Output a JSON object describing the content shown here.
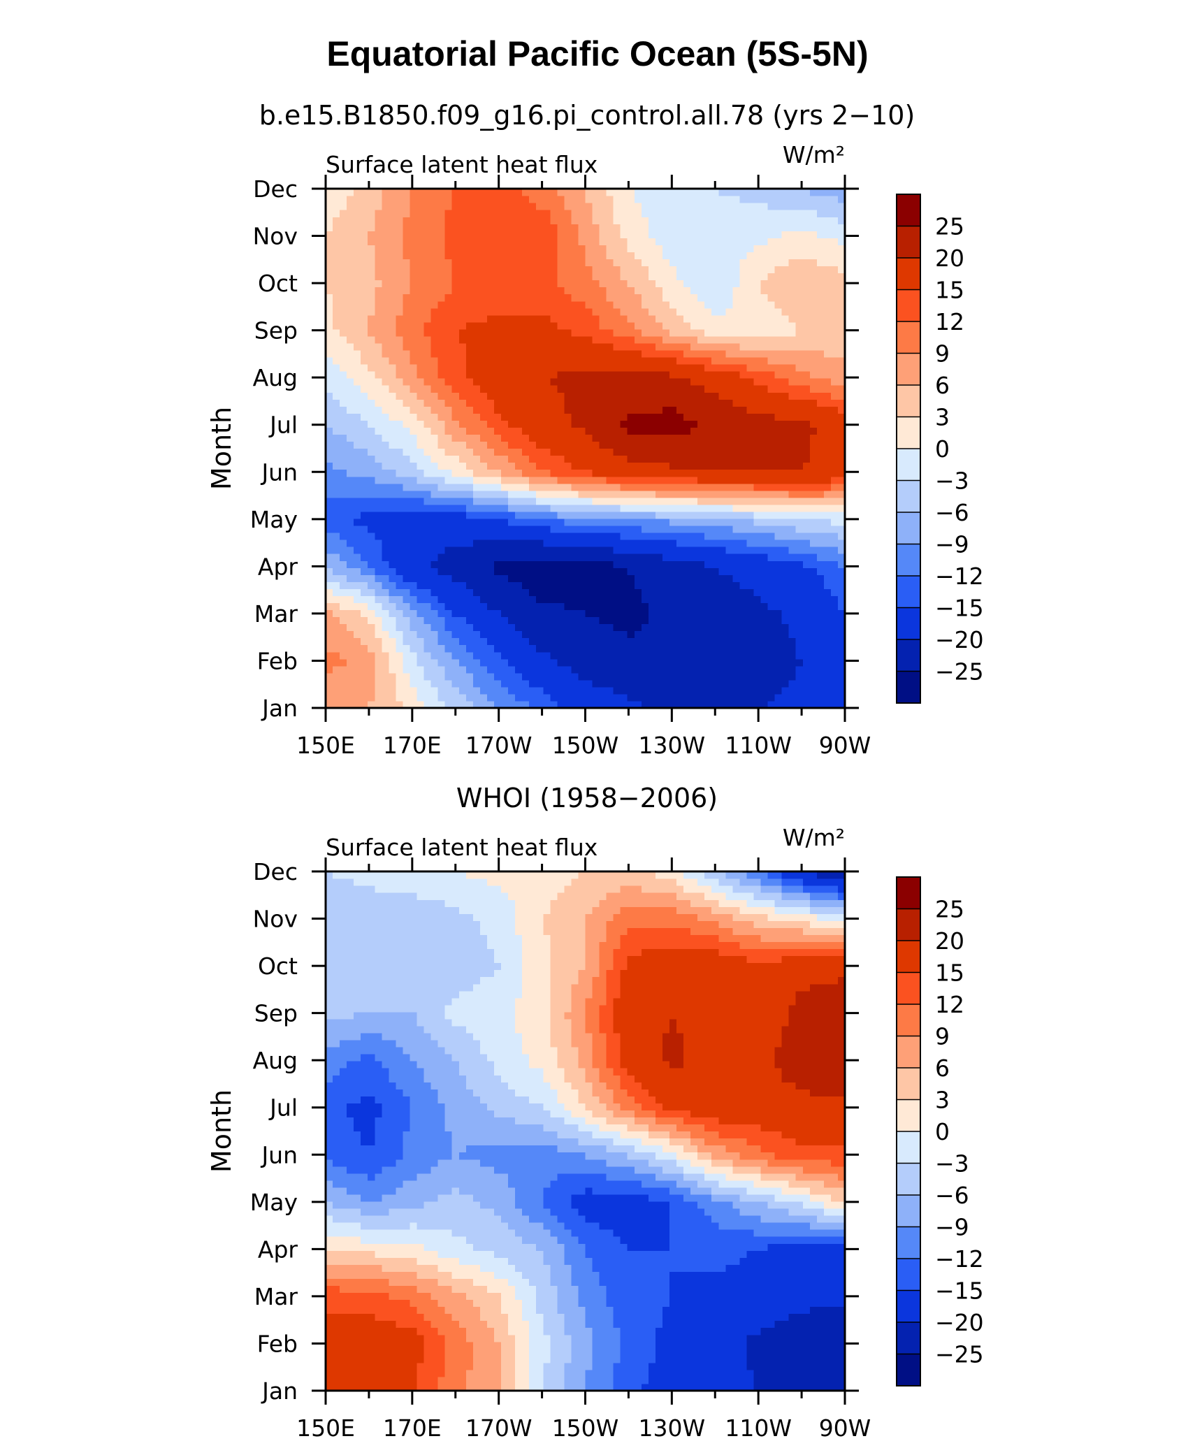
{
  "title": "Equatorial Pacific Ocean (5S-5N)",
  "colorbar": {
    "labels": [
      "25",
      "20",
      "15",
      "12",
      "9",
      "6",
      "3",
      "0",
      "−3",
      "−6",
      "−9",
      "−12",
      "−15",
      "−20",
      "−25"
    ],
    "colors": [
      "#8b0000",
      "#b82000",
      "#de3800",
      "#fb5220",
      "#fd7a46",
      "#fea077",
      "#fec6a6",
      "#ffe9d6",
      "#d8eafd",
      "#b4cdfb",
      "#8eb1f9",
      "#5588f8",
      "#2a5ef5",
      "#0b36dd",
      "#0422b0",
      "#000f85"
    ]
  },
  "chart_data": [
    {
      "type": "heatmap",
      "title": "b.e15.B1850.f09_g16.pi_control.all.78 (yrs 2−10)",
      "left_label": "Surface latent heat flux",
      "units_label": "W/m²",
      "ylabel": "Month",
      "xlabel": "",
      "x_ticks": [
        "150E",
        "170E",
        "170W",
        "150W",
        "130W",
        "110W",
        "90W"
      ],
      "x_range": [
        150,
        270
      ],
      "y_ticks": [
        "Jan",
        "Feb",
        "Mar",
        "Apr",
        "May",
        "Jun",
        "Jul",
        "Aug",
        "Sep",
        "Oct",
        "Nov",
        "Dec"
      ],
      "levels": [
        -25,
        -20,
        -15,
        -12,
        -9,
        -6,
        -3,
        0,
        3,
        6,
        9,
        12,
        15,
        20,
        25
      ],
      "values": [
        [
          6,
          6,
          2,
          -4,
          -9,
          -13,
          -17,
          -19,
          -21,
          -22,
          -20,
          -19,
          -17
        ],
        [
          10,
          8,
          -2,
          -9,
          -14,
          -19,
          -22,
          -24,
          -25,
          -25,
          -22,
          -20,
          -17
        ],
        [
          7,
          2,
          -8,
          -15,
          -20,
          -24,
          -25,
          -26,
          -24,
          -23,
          -21,
          -19,
          -15
        ],
        [
          -6,
          -12,
          -19,
          -22,
          -26,
          -28,
          -27,
          -25,
          -22,
          -20,
          -18,
          -16,
          -12
        ],
        [
          -14,
          -16,
          -18,
          -17,
          -15,
          -12,
          -10,
          -9,
          -8,
          -7,
          -5,
          -3,
          -2
        ],
        [
          -10,
          -8,
          -4,
          1,
          6,
          12,
          15,
          18,
          19,
          20,
          20,
          20,
          18
        ],
        [
          -6,
          -3,
          1,
          8,
          14,
          18,
          21,
          26,
          27,
          24,
          22,
          21,
          18
        ],
        [
          -2,
          2,
          8,
          14,
          18,
          20,
          21,
          22,
          21,
          18,
          14,
          10,
          7
        ],
        [
          2,
          6,
          11,
          15,
          16,
          16,
          14,
          10,
          5,
          1,
          1,
          3,
          4
        ],
        [
          3,
          5,
          9,
          12,
          13,
          13,
          10,
          6,
          1,
          -3,
          3,
          6,
          4
        ],
        [
          3,
          6,
          10,
          13,
          15,
          15,
          8,
          2,
          -2,
          -1,
          -1,
          1,
          -1
        ],
        [
          1,
          4,
          9,
          12,
          14,
          10,
          6,
          0,
          -2,
          -3,
          -4,
          -6,
          -8
        ]
      ]
    },
    {
      "type": "heatmap",
      "title": "WHOI (1958−2006)",
      "left_label": "Surface latent heat flux",
      "units_label": "W/m²",
      "ylabel": "Month",
      "xlabel": "",
      "x_ticks": [
        "150E",
        "170E",
        "170W",
        "150W",
        "130W",
        "110W",
        "90W"
      ],
      "x_range": [
        150,
        270
      ],
      "y_ticks": [
        "Jan",
        "Feb",
        "Mar",
        "Apr",
        "May",
        "Jun",
        "Jul",
        "Aug",
        "Sep",
        "Oct",
        "Nov",
        "Dec"
      ],
      "levels": [
        -25,
        -20,
        -15,
        -12,
        -9,
        -6,
        -3,
        0,
        3,
        6,
        9,
        12,
        15,
        20,
        25
      ],
      "values": [
        [
          15,
          16,
          15,
          10,
          6,
          -3,
          -9,
          -14,
          -17,
          -18,
          -20,
          -22,
          -24
        ],
        [
          17,
          18,
          17,
          11,
          6,
          -2,
          -8,
          -13,
          -16,
          -18,
          -21,
          -24,
          -25
        ],
        [
          14,
          13,
          11,
          7,
          3,
          -4,
          -10,
          -14,
          -15,
          -16,
          -17,
          -18,
          -19
        ],
        [
          3,
          2,
          1,
          -2,
          -4,
          -6,
          -12,
          -15,
          -15,
          -14,
          -15,
          -17,
          -16
        ],
        [
          -6,
          -9,
          -7,
          -5,
          -7,
          -12,
          -17,
          -17,
          -15,
          -10,
          -6,
          -2,
          4
        ],
        [
          -13,
          -15,
          -11,
          -9,
          -10,
          -11,
          -9,
          -6,
          -1,
          7,
          11,
          14,
          14
        ],
        [
          -14,
          -16,
          -12,
          -8,
          -5,
          -3,
          3,
          10,
          16,
          18,
          18,
          19,
          19
        ],
        [
          -10,
          -13,
          -9,
          -6,
          -2,
          1,
          7,
          17,
          21,
          18,
          19,
          22,
          23
        ],
        [
          -5,
          -6,
          -6,
          -2,
          -1,
          2,
          9,
          18,
          20,
          18,
          16,
          22,
          25
        ],
        [
          -4,
          -4,
          -5,
          -5,
          -3,
          2,
          6,
          16,
          18,
          18,
          16,
          18,
          18
        ],
        [
          -6,
          -5,
          -5,
          -4,
          -2,
          3,
          6,
          11,
          11,
          8,
          4,
          2,
          -2
        ],
        [
          -3,
          -2,
          -1,
          0,
          1,
          1,
          3,
          4,
          1,
          -5,
          -12,
          -20,
          -24
        ]
      ]
    }
  ]
}
